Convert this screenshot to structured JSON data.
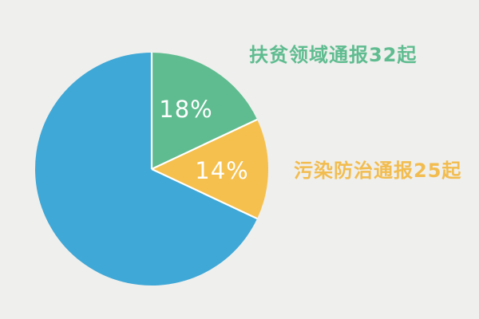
{
  "chart_data": {
    "type": "pie",
    "direction": "clockwise",
    "start_angle_deg": -90,
    "slices": [
      {
        "id": "poverty-alleviation",
        "label": "扶贫领域通报32起",
        "pct_label": "18%",
        "value_pct": 18,
        "count": 32,
        "color": "#5FBC90",
        "label_color": "#5FBC90"
      },
      {
        "id": "pollution-control",
        "label": "污染防治通报25起",
        "pct_label": "14%",
        "value_pct": 14,
        "count": 25,
        "color": "#F5C04D",
        "label_color": "#F2BC4E"
      },
      {
        "id": "other",
        "label": "",
        "pct_label": "",
        "value_pct": 68,
        "color": "#3FA8D7",
        "label_color": ""
      }
    ],
    "separator_color": "#FFFFFF",
    "pct_text_color": "#FFFFFF",
    "legend_position": "right-annotations"
  },
  "colors": {
    "background": "#EFEFED",
    "blue": "#3FA8D7",
    "green": "#5FBC90",
    "yellow": "#F5C04D"
  }
}
